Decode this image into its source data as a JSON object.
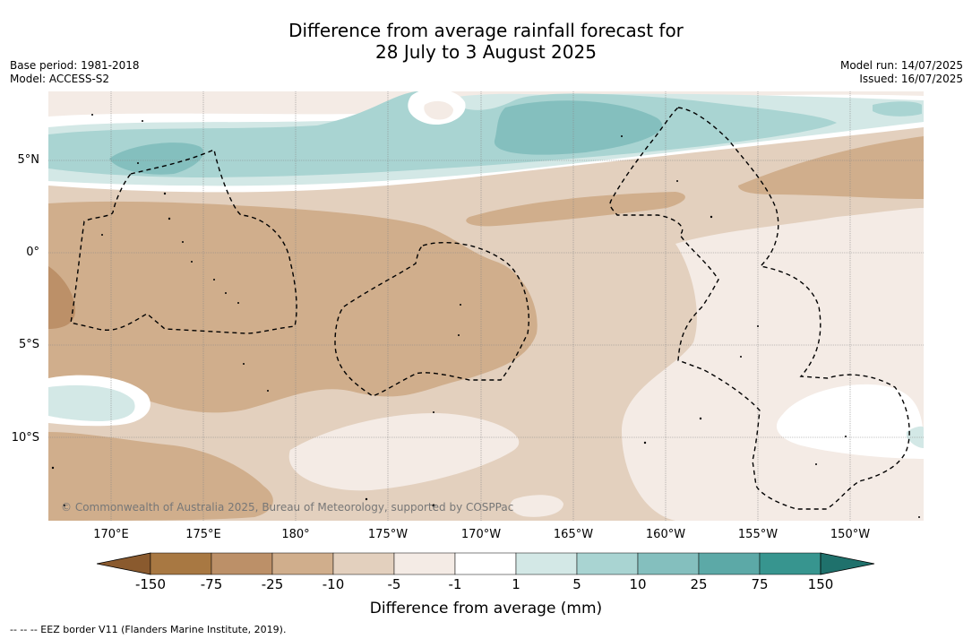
{
  "title_line1": "Difference from average rainfall forecast for",
  "title_line2": "28 July to 3 August 2025",
  "base_period": "Base period: 1981-2018",
  "model": "Model: ACCESS-S2",
  "model_run": "Model run: 14/07/2025",
  "issued": "Issued: 16/07/2025",
  "lat_labels": [
    "5°N",
    "0°",
    "5°S",
    "10°S"
  ],
  "lon_labels": [
    "170°E",
    "175°E",
    "180°",
    "175°W",
    "170°W",
    "165°W",
    "160°W",
    "155°W",
    "150°W"
  ],
  "colorbar": {
    "ticks": [
      "-150",
      "-75",
      "-25",
      "-10",
      "-5",
      "-1",
      "1",
      "5",
      "10",
      "25",
      "75",
      "150"
    ],
    "colors": [
      "#8a5a2e",
      "#a87842",
      "#bc9068",
      "#d0ae8c",
      "#e3d0be",
      "#f4ebe5",
      "#ffffff",
      "#d3e8e6",
      "#a9d4d2",
      "#84bfbe",
      "#5ca9a7",
      "#37958f",
      "#1f716c"
    ],
    "label": "Difference from average (mm)"
  },
  "copyright": "© Commonwealth of Australia 2025, Bureau of Meteorology, supported by COSPPac",
  "eez_note": "--  --  -- EEZ border V11 (Flanders Marine Institute, 2019)."
}
